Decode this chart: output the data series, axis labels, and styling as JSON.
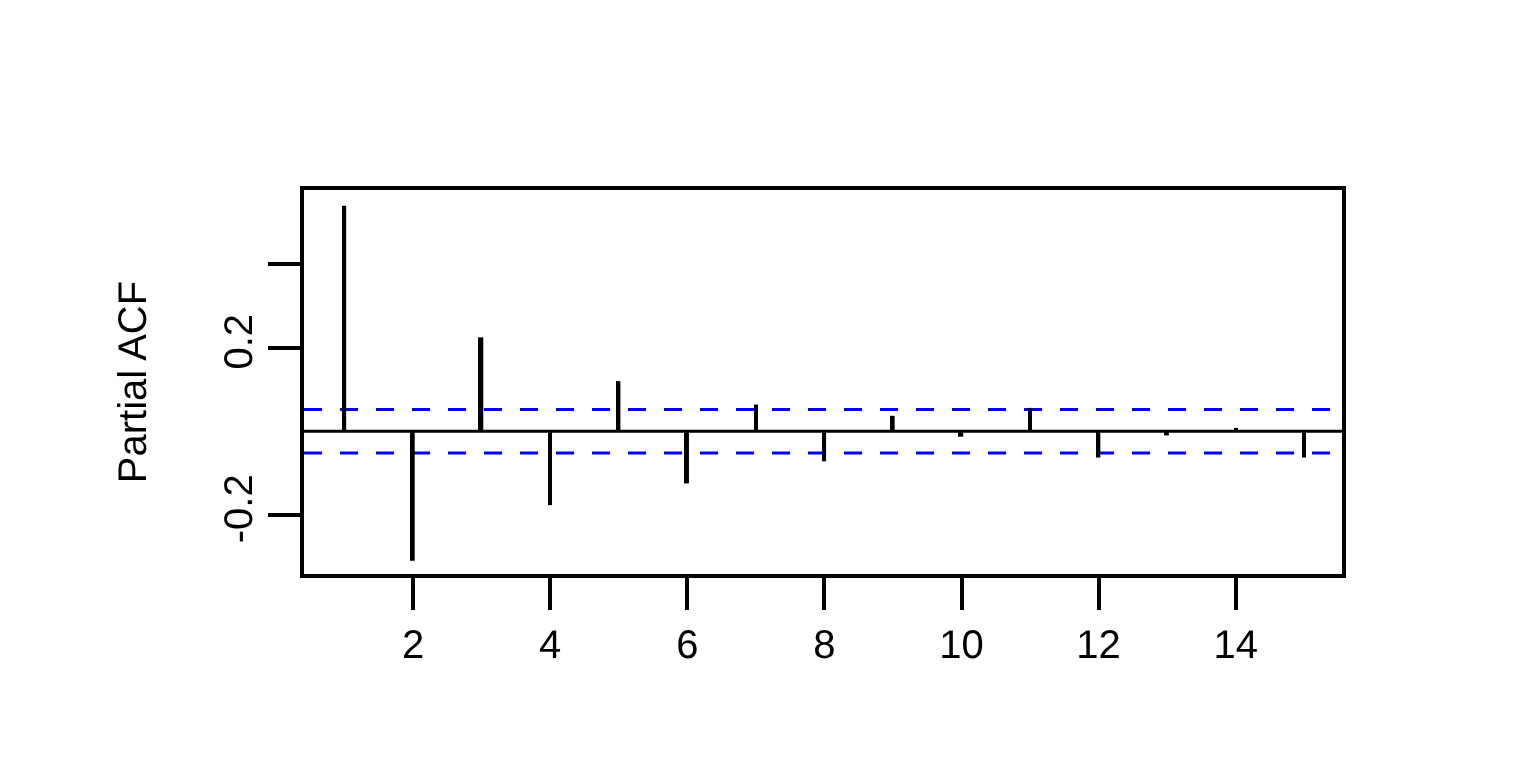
{
  "chart_data": {
    "type": "bar",
    "ylabel": "Partial ACF",
    "x": [
      1,
      2,
      3,
      4,
      5,
      6,
      7,
      8,
      9,
      10,
      11,
      12,
      13,
      14,
      15
    ],
    "values": [
      0.54,
      -0.31,
      0.225,
      -0.177,
      0.12,
      -0.125,
      0.064,
      -0.072,
      0.037,
      -0.013,
      0.056,
      -0.063,
      -0.01,
      0.008,
      -0.063
    ],
    "color": "#000000",
    "xlim": [
      0.41,
      15.55
    ],
    "xticks": [
      2,
      4,
      6,
      8,
      10,
      12,
      14
    ],
    "ylim": [
      -0.342,
      0.578
    ],
    "yticks": [
      -0.2,
      0.2,
      {
        "value": 0.4,
        "label": null
      }
    ],
    "ref_lines": [
      {
        "axis": "y",
        "value": 0,
        "label": null,
        "color": "#000000",
        "line_style": "solid"
      },
      {
        "axis": "y",
        "value": 0.052,
        "label": null,
        "color": "#0000ff",
        "line_style": "dashed"
      },
      {
        "axis": "y",
        "value": -0.052,
        "label": null,
        "color": "#0000ff",
        "line_style": "dashed"
      }
    ],
    "tick_labels": true
  }
}
